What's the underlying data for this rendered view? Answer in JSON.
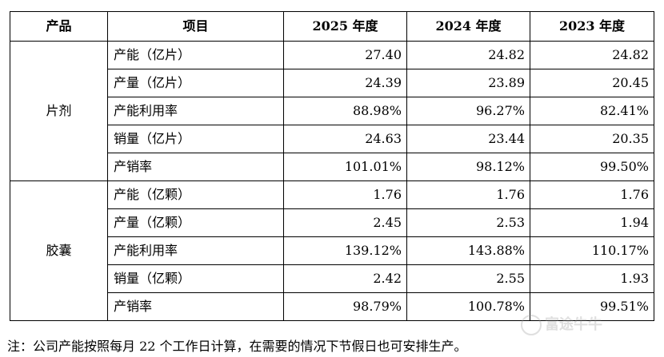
{
  "headers": {
    "product": "产品",
    "item": "项目",
    "y2025": "2025 年度",
    "y2024": "2024 年度",
    "y2023": "2023 年度"
  },
  "groups": [
    {
      "name": "片剂",
      "rows": [
        {
          "item": "产能（亿片）",
          "y2025": "27.40",
          "y2024": "24.82",
          "y2023": "24.82"
        },
        {
          "item": "产量（亿片）",
          "y2025": "24.39",
          "y2024": "23.89",
          "y2023": "20.45"
        },
        {
          "item": "产能利用率",
          "y2025": "88.98%",
          "y2024": "96.27%",
          "y2023": "82.41%"
        },
        {
          "item": "销量（亿片）",
          "y2025": "24.63",
          "y2024": "23.44",
          "y2023": "20.35"
        },
        {
          "item": "产销率",
          "y2025": "101.01%",
          "y2024": "98.12%",
          "y2023": "99.50%"
        }
      ]
    },
    {
      "name": "胶囊",
      "rows": [
        {
          "item": "产能（亿颗）",
          "y2025": "1.76",
          "y2024": "1.76",
          "y2023": "1.76"
        },
        {
          "item": "产量（亿颗）",
          "y2025": "2.45",
          "y2024": "2.53",
          "y2023": "1.94"
        },
        {
          "item": "产能利用率",
          "y2025": "139.12%",
          "y2024": "143.88%",
          "y2023": "110.17%"
        },
        {
          "item": "销量（亿颗）",
          "y2025": "2.42",
          "y2024": "2.55",
          "y2023": "1.93"
        },
        {
          "item": "产销率",
          "y2025": "98.79%",
          "y2024": "100.78%",
          "y2023": "99.51%"
        }
      ]
    }
  ],
  "note": "注：公司产能按照每月 22 个工作日计算，在需要的情况下节假日也可安排生产。",
  "watermark": "富途牛牛"
}
